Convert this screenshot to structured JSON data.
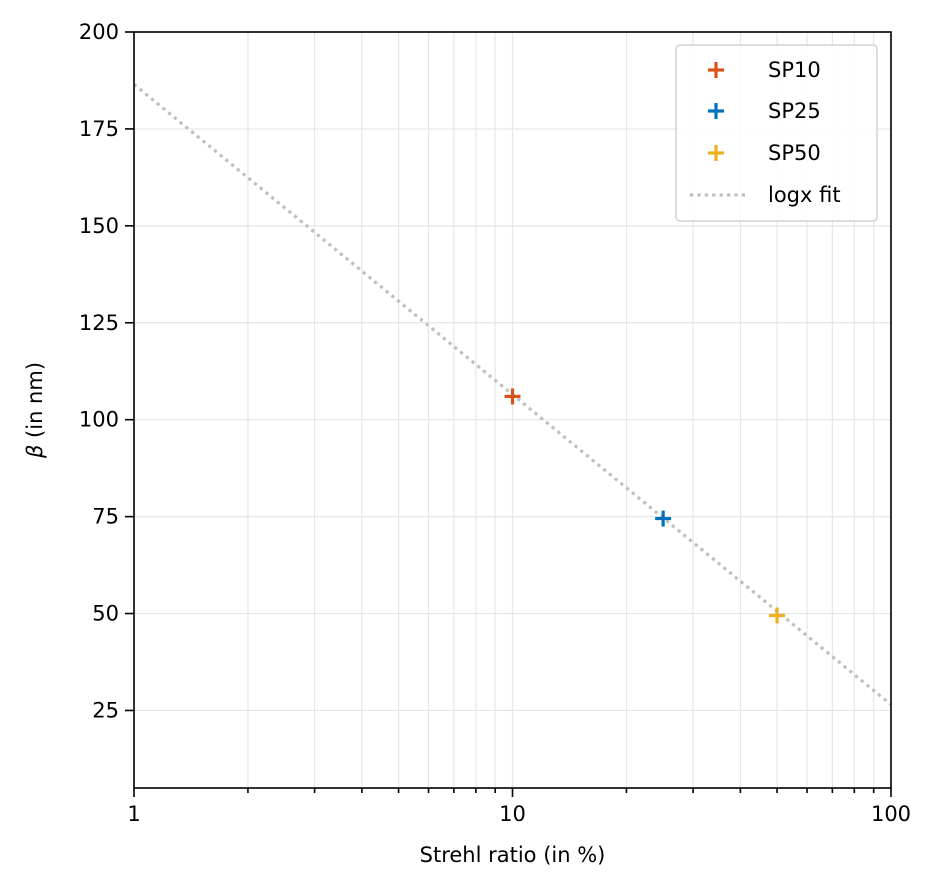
{
  "chart_data": {
    "type": "scatter",
    "title": "",
    "xlabel": "Strehl ratio (in %)",
    "ylabel_symbol": "β",
    "ylabel_rest": " (in nm)",
    "xscale": "log",
    "xlim": [
      1,
      100
    ],
    "ylim": [
      5,
      200
    ],
    "x_ticks": [
      1,
      10,
      100
    ],
    "x_tick_labels": [
      "1",
      "10",
      "100"
    ],
    "y_ticks": [
      25,
      50,
      75,
      100,
      125,
      150,
      175,
      200
    ],
    "y_tick_labels": [
      "25",
      "50",
      "75",
      "100",
      "125",
      "150",
      "175",
      "200"
    ],
    "grid": true,
    "legend_position": "top-right",
    "series": [
      {
        "name": "SP10",
        "marker": "plus",
        "color": "#d95319",
        "points": [
          {
            "x": 10,
            "y": 106
          }
        ]
      },
      {
        "name": "SP25",
        "marker": "plus",
        "color": "#0072bd",
        "points": [
          {
            "x": 25,
            "y": 74.5
          }
        ]
      },
      {
        "name": "SP50",
        "marker": "plus",
        "color": "#edb120",
        "points": [
          {
            "x": 50,
            "y": 49.5
          }
        ]
      }
    ],
    "fit": {
      "name": "logx fit",
      "style": "dotted",
      "color": "#bfbfbf",
      "x": [
        1,
        100
      ],
      "y": [
        186.5,
        26.5
      ]
    }
  }
}
